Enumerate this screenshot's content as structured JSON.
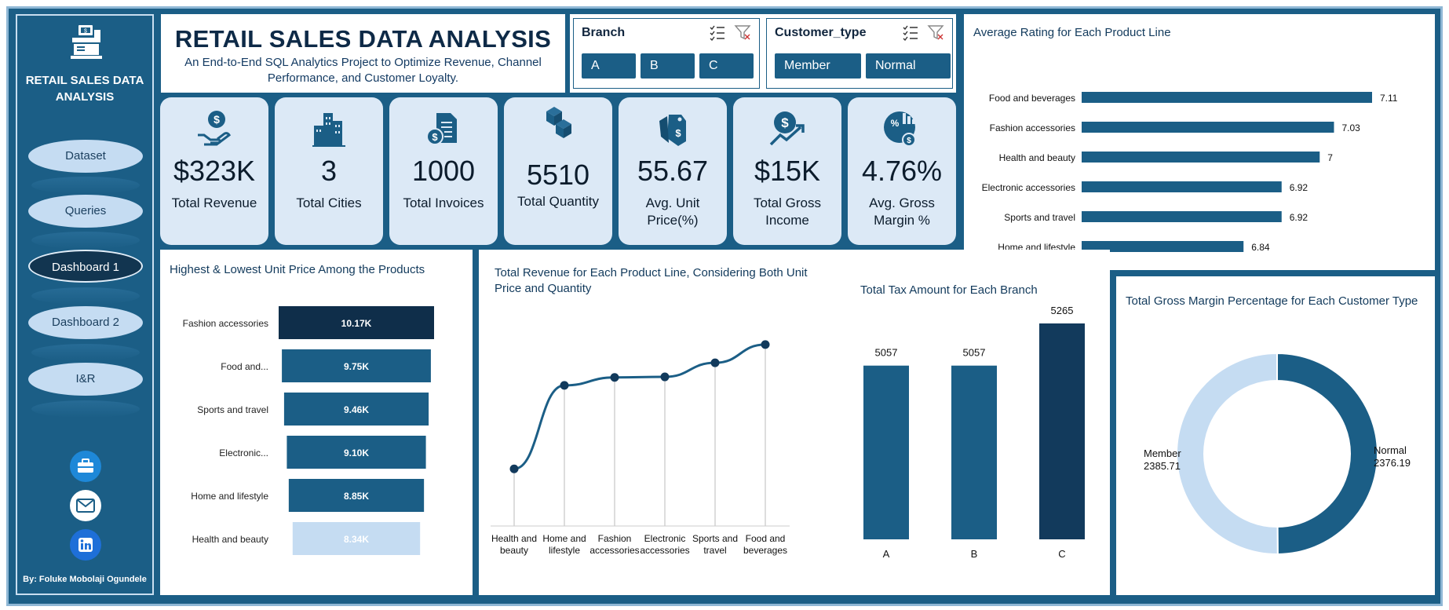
{
  "sidebar": {
    "title": "RETAIL SALES DATA ANALYSIS",
    "nav": [
      "Dataset",
      "Queries",
      "Dashboard 1",
      "Dashboard 2",
      "I&R"
    ],
    "active": "Dashboard 1",
    "byline": "By: Foluke Mobolaji Ogundele",
    "social": [
      "briefcase-icon",
      "mail-icon",
      "linkedin-icon"
    ]
  },
  "header": {
    "title": "RETAIL SALES DATA ANALYSIS",
    "subtitle": "An End-to-End SQL Analytics Project to Optimize Revenue, Channel Performance, and Customer Loyalty."
  },
  "slicers": {
    "branch": {
      "title": "Branch",
      "options": [
        "A",
        "B",
        "C"
      ]
    },
    "customer_type": {
      "title": "Customer_type",
      "options": [
        "Member",
        "Normal"
      ]
    }
  },
  "kpis": [
    {
      "icon": "revenue-icon",
      "value": "$323K",
      "label": "Total Revenue"
    },
    {
      "icon": "cities-icon",
      "value": "3",
      "label": "Total Cities"
    },
    {
      "icon": "invoice-icon",
      "value": "1000",
      "label": "Total Invoices"
    },
    {
      "icon": "boxes-icon",
      "value": "5510",
      "label": "Total Quantity"
    },
    {
      "icon": "price-tag-icon",
      "value": "55.67",
      "label": "Avg. Unit Price(%)"
    },
    {
      "icon": "growth-icon",
      "value": "$15K",
      "label": "Total Gross Income"
    },
    {
      "icon": "margin-pie-icon",
      "value": "4.76%",
      "label": "Avg. Gross Margin %"
    }
  ],
  "colors": {
    "dark_blue": "#1b5e86",
    "navy": "#0f2e4a",
    "light_blue": "#c5dcf2",
    "panel_light": "#dce9f6"
  },
  "chart_data": [
    {
      "type": "bar",
      "orientation": "horizontal",
      "title": "Average Rating for Each Product Line",
      "categories": [
        "Food and beverages",
        "Fashion accessories",
        "Health and beauty",
        "Electronic accessories",
        "Sports and travel",
        "Home and lifestyle"
      ],
      "values": [
        7.11,
        7.03,
        7,
        6.92,
        6.92,
        6.84
      ],
      "value_labels": [
        "7.11",
        "7.03",
        "7",
        "6.92",
        "6.92",
        "6.84"
      ]
    },
    {
      "type": "bar",
      "orientation": "horizontal",
      "style": "funnel",
      "title": "Highest & Lowest Unit Price Among the Products",
      "categories": [
        "Fashion accessories",
        "Food and...",
        "Sports and travel",
        "Electronic...",
        "Home and lifestyle",
        "Health and beauty"
      ],
      "values": [
        10170,
        9750,
        9460,
        9100,
        8850,
        8340
      ],
      "value_labels": [
        "10.17K",
        "9.75K",
        "9.46K",
        "9.10K",
        "8.85K",
        "8.34K"
      ]
    },
    {
      "type": "line",
      "title": "Total Revenue for Each Product Line, Considering Both Unit Price and Quantity",
      "categories": [
        "Health and beauty",
        "Home and lifestyle",
        "Fashion accessories",
        "Electronic accessories",
        "Sports and travel",
        "Food and beverages"
      ],
      "values": [
        49193,
        53862,
        54306,
        54337,
        55123,
        56145
      ],
      "ylim": [
        46000,
        57500
      ]
    },
    {
      "type": "bar",
      "title": "Total Tax Amount for Each Branch",
      "categories": [
        "A",
        "B",
        "C"
      ],
      "values": [
        5057,
        5057,
        5265
      ],
      "value_labels": [
        "5057",
        "5057",
        "5265"
      ]
    },
    {
      "type": "pie",
      "style": "donut",
      "title": "Total Gross Margin Percentage for Each Customer Type",
      "categories": [
        "Normal",
        "Member"
      ],
      "values": [
        2376.19,
        2385.71
      ],
      "value_labels": [
        "2376.19",
        "2385.71"
      ]
    }
  ]
}
